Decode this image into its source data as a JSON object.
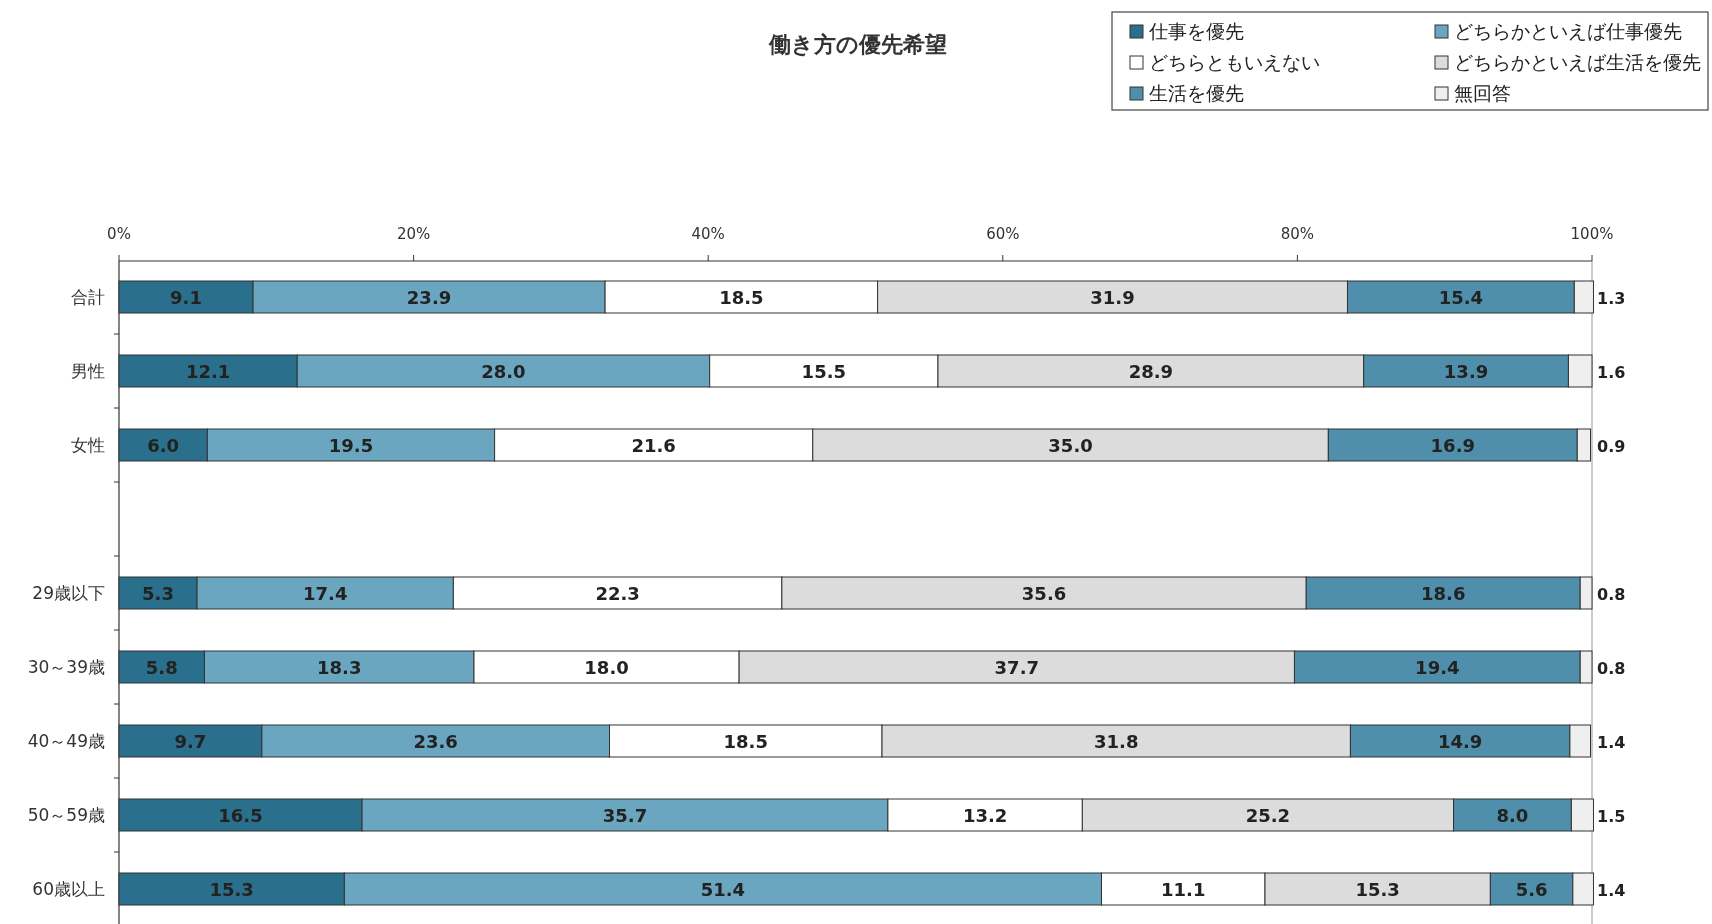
{
  "chart_data": {
    "type": "bar",
    "orientation": "horizontal",
    "stacked": true,
    "title": "働き方の優先希望",
    "categories": [
      "合計",
      "男性",
      "女性",
      null,
      "29歳以下",
      "30～39歳",
      "40～49歳",
      "50～59歳",
      "60歳以上"
    ],
    "series": [
      {
        "name": "仕事を優先",
        "color": "#2a6f8c",
        "values": [
          9.1,
          12.1,
          6.0,
          null,
          5.3,
          5.8,
          9.7,
          16.5,
          15.3
        ],
        "value_labels": [
          "9.1",
          "12.1",
          "6.0",
          null,
          "5.3",
          "5.8",
          "9.7",
          "16.5",
          "15.3"
        ]
      },
      {
        "name": "どちらかといえば仕事優先",
        "color": "#6aa6c0",
        "values": [
          23.9,
          28.0,
          19.5,
          null,
          17.4,
          18.3,
          23.6,
          35.7,
          51.4
        ],
        "value_labels": [
          "23.9",
          "28.0",
          "19.5",
          null,
          "17.4",
          "18.3",
          "23.6",
          "35.7",
          "51.4"
        ]
      },
      {
        "name": "どちらともいえない",
        "color": "#ffffff",
        "values": [
          18.5,
          15.5,
          21.6,
          null,
          22.3,
          18.0,
          18.5,
          13.2,
          11.1
        ],
        "value_labels": [
          "18.5",
          "15.5",
          "21.6",
          null,
          "22.3",
          "18.0",
          "18.5",
          "13.2",
          "11.1"
        ]
      },
      {
        "name": "どちらかといえば生活を優先",
        "color": "#dcdcdc",
        "values": [
          31.9,
          28.9,
          35.0,
          null,
          35.6,
          37.7,
          31.8,
          25.2,
          15.3
        ],
        "value_labels": [
          "31.9",
          "28.9",
          "35.0",
          null,
          "35.6",
          "37.7",
          "31.8",
          "25.2",
          "15.3"
        ]
      },
      {
        "name": "生活を優先",
        "color": "#4f8fab",
        "values": [
          15.4,
          13.9,
          16.9,
          null,
          18.6,
          19.4,
          14.9,
          8.0,
          5.6
        ],
        "value_labels": [
          "15.4",
          "13.9",
          "16.9",
          null,
          "18.6",
          "19.4",
          "14.9",
          "8.0",
          "5.6"
        ]
      },
      {
        "name": "無回答",
        "color": "#efefef",
        "values": [
          1.3,
          1.6,
          0.9,
          null,
          0.8,
          0.8,
          1.4,
          1.5,
          1.4
        ],
        "value_labels": [
          "1.3",
          "1.6",
          "0.9",
          null,
          "0.8",
          "0.8",
          "1.4",
          "1.5",
          "1.4"
        ]
      }
    ],
    "xlim": [
      0,
      100
    ],
    "xticks": [
      {
        "value": 0,
        "label": "0%"
      },
      {
        "value": 20,
        "label": "20%"
      },
      {
        "value": 40,
        "label": "40%"
      },
      {
        "value": 60,
        "label": "60%"
      },
      {
        "value": 80,
        "label": "80%"
      },
      {
        "value": 100,
        "label": "100%"
      }
    ],
    "legend": "top right",
    "grid": false
  }
}
